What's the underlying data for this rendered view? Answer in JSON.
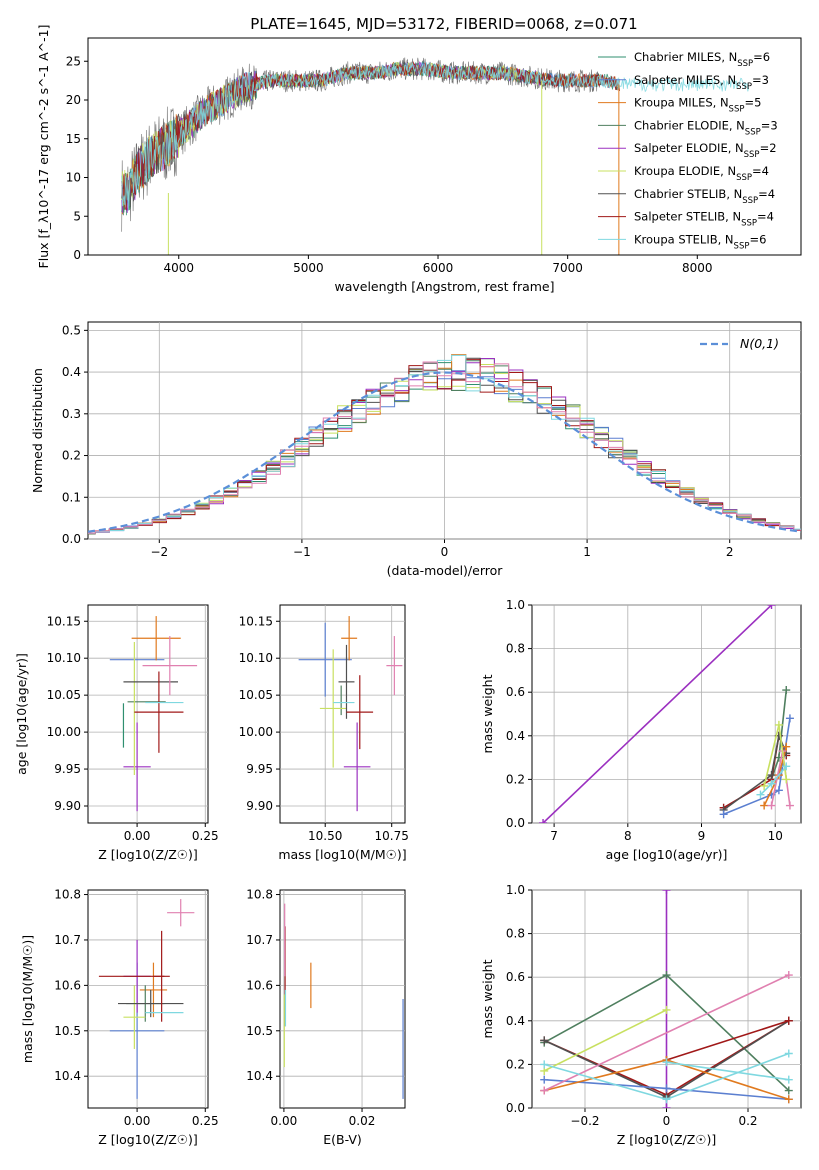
{
  "figure_title": "PLATE=1645, MJD=53172, FIBERID=0068, z=0.071",
  "colors": {
    "chabrier_miles": "#2f8f6f",
    "salpeter_miles": "#5b7fd0",
    "kroupa_miles": "#e07a1f",
    "chabrier_elodie": "#4f7f5f",
    "salpeter_elodie": "#9b30c0",
    "kroupa_elodie": "#c8e060",
    "chabrier_stelib": "#505050",
    "salpeter_stelib": "#a01818",
    "kroupa_stelib": "#7fd8e0",
    "pink": "#e080b0",
    "gaussian": "#5b8fd8",
    "grid": "#b0b0b0"
  },
  "chart_data": [
    {
      "id": "spectrum",
      "type": "line",
      "xlabel": "wavelength [Angstrom, rest frame]",
      "ylabel": "Flux [f_λ10^-17 erg cm^-2 s^-1 A^-1]",
      "xlim": [
        3300,
        8800
      ],
      "ylim": [
        0,
        28
      ],
      "xticks": [
        4000,
        5000,
        6000,
        7000,
        8000
      ],
      "yticks": [
        0,
        5,
        10,
        15,
        20,
        25
      ],
      "grid": false,
      "legend_position": "upper right",
      "spectrum_model": {
        "x": [
          3600,
          3700,
          3800,
          3900,
          4000,
          4100,
          4200,
          4300,
          4400,
          4500,
          4700,
          4900,
          5100,
          5300,
          5500,
          5700,
          5900,
          6100,
          6300,
          6500,
          6700,
          6900,
          7100,
          7300,
          7400
        ],
        "y": [
          8,
          11,
          13,
          14,
          15.5,
          17,
          18.5,
          19.5,
          20.5,
          21.5,
          22.5,
          22.5,
          22.5,
          23.5,
          23.5,
          24,
          24,
          23.5,
          23.5,
          23.5,
          23,
          22.5,
          22.5,
          22.5,
          22
        ]
      },
      "series": [
        {
          "name": "Chabrier MILES, N_SSP=6",
          "color_key": "chabrier_miles",
          "end": 7400
        },
        {
          "name": "Salpeter MILES, N_SSP=3",
          "color_key": "salpeter_miles",
          "end": 7400
        },
        {
          "name": "Kroupa MILES, N_SSP=5",
          "color_key": "kroupa_miles",
          "end": 7400
        },
        {
          "name": "Chabrier ELODIE, N_SSP=3",
          "color_key": "chabrier_elodie",
          "end": 6800
        },
        {
          "name": "Salpeter ELODIE, N_SSP=2",
          "color_key": "salpeter_elodie",
          "end": 6800
        },
        {
          "name": "Kroupa ELODIE, N_SSP=4",
          "color_key": "kroupa_elodie",
          "end": 6800
        },
        {
          "name": "Chabrier STELIB, N_SSP=4",
          "color_key": "chabrier_stelib",
          "end": 7400
        },
        {
          "name": "Salpeter STELIB, N_SSP=4",
          "color_key": "salpeter_stelib",
          "end": 7400
        },
        {
          "name": "Kroupa STELIB, N_SSP=6",
          "color_key": "kroupa_stelib",
          "end": 8400
        }
      ],
      "data_series": {
        "name": "data",
        "color": "#707070",
        "x_range": [
          3560,
          7250
        ]
      }
    },
    {
      "id": "residuals",
      "type": "line",
      "xlabel": "(data-model)/error",
      "ylabel": "Normed distribution",
      "xlim": [
        -2.5,
        2.5
      ],
      "ylim": [
        0,
        0.52
      ],
      "xticks": [
        -2,
        -1,
        0,
        1,
        2
      ],
      "yticks": [
        0.0,
        0.1,
        0.2,
        0.3,
        0.4,
        0.5
      ],
      "grid": true,
      "legend_position": "upper right",
      "gaussian": {
        "label": "N(0,1)",
        "mean": 0,
        "sigma": 1
      },
      "hist_bin_width": 0.1,
      "hist_colors": [
        "chabrier_miles",
        "salpeter_miles",
        "kroupa_miles",
        "chabrier_elodie",
        "salpeter_elodie",
        "kroupa_elodie",
        "chabrier_stelib",
        "salpeter_stelib",
        "kroupa_stelib",
        "pink"
      ]
    },
    {
      "id": "age_vs_Z",
      "type": "scatter",
      "xlabel": "Z [log10(Z/Z☉)]",
      "ylabel": "age [log10(age/yr)]",
      "xlim": [
        -0.18,
        0.26
      ],
      "ylim": [
        9.877,
        10.172
      ],
      "xticks": [
        0.0,
        0.25
      ],
      "yticks": [
        9.9,
        9.95,
        10.0,
        10.05,
        10.1,
        10.15
      ],
      "tick_labels_x": [
        "0.00",
        "0.25"
      ],
      "tick_labels_y": [
        "9.90",
        "9.95",
        "10.00",
        "10.05, ",
        "10.10",
        "10.15"
      ],
      "grid": true,
      "points": [
        {
          "x": 0.0,
          "y": 10.098,
          "xerr": 0.1,
          "yerr": 0.0,
          "color_key": "salpeter_miles"
        },
        {
          "x": 0.07,
          "y": 10.127,
          "xerr": 0.09,
          "yerr": 0.03,
          "color_key": "kroupa_miles"
        },
        {
          "x": 0.035,
          "y": 10.041,
          "xerr": 0.07,
          "yerr": 0.0,
          "color_key": "chabrier_elodie"
        },
        {
          "x": 0.0,
          "y": 9.953,
          "xerr": 0.05,
          "yerr": 0.06,
          "color_key": "salpeter_elodie"
        },
        {
          "x": -0.01,
          "y": 10.032,
          "xerr": 0.0,
          "yerr": 0.09,
          "color_key": "kroupa_elodie"
        },
        {
          "x": 0.05,
          "y": 10.068,
          "xerr": 0.1,
          "yerr": 0.0,
          "color_key": "chabrier_stelib"
        },
        {
          "x": 0.08,
          "y": 10.027,
          "xerr": 0.09,
          "yerr": 0.055,
          "color_key": "salpeter_stelib"
        },
        {
          "x": 0.1,
          "y": 10.04,
          "xerr": 0.07,
          "yerr": 0.0,
          "color_key": "kroupa_stelib"
        },
        {
          "x": 0.12,
          "y": 10.09,
          "xerr": 0.1,
          "yerr": 0.04,
          "color_key": "pink"
        },
        {
          "x": -0.05,
          "y": 10.009,
          "xerr": 0.0,
          "yerr": 0.03,
          "color_key": "chabrier_miles"
        }
      ]
    },
    {
      "id": "age_vs_mass",
      "type": "scatter",
      "xlabel": "mass [log10(M/M☉)]",
      "ylabel": "",
      "xlim": [
        10.33,
        10.8
      ],
      "ylim": [
        9.877,
        10.172
      ],
      "xticks": [
        10.5,
        10.75
      ],
      "yticks": [
        9.9,
        9.95,
        10.0,
        10.05,
        10.1,
        10.15
      ],
      "tick_labels_x": [
        "10.50",
        "10.75"
      ],
      "tick_labels_y": [
        "9.90",
        "9.95",
        "10.00",
        "10.05",
        "10.10",
        "10.15"
      ],
      "grid": true,
      "points": [
        {
          "x": 10.5,
          "y": 10.098,
          "xerr": 0.1,
          "yerr": 0.05,
          "color_key": "salpeter_miles"
        },
        {
          "x": 10.59,
          "y": 10.127,
          "xerr": 0.03,
          "yerr": 0.03,
          "color_key": "kroupa_miles"
        },
        {
          "x": 10.56,
          "y": 10.043,
          "xerr": 0.0,
          "yerr": 0.02,
          "color_key": "chabrier_elodie"
        },
        {
          "x": 10.62,
          "y": 9.953,
          "xerr": 0.05,
          "yerr": 0.06,
          "color_key": "salpeter_elodie"
        },
        {
          "x": 10.53,
          "y": 10.032,
          "xerr": 0.05,
          "yerr": 0.08,
          "color_key": "kroupa_elodie"
        },
        {
          "x": 10.58,
          "y": 10.068,
          "xerr": 0.03,
          "yerr": 0.05,
          "color_key": "chabrier_stelib"
        },
        {
          "x": 10.63,
          "y": 10.027,
          "xerr": 0.05,
          "yerr": 0.05,
          "color_key": "salpeter_stelib"
        },
        {
          "x": 10.57,
          "y": 10.04,
          "xerr": 0.04,
          "yerr": 0.0,
          "color_key": "kroupa_stelib"
        },
        {
          "x": 10.76,
          "y": 10.09,
          "xerr": 0.03,
          "yerr": 0.04,
          "color_key": "pink"
        }
      ]
    },
    {
      "id": "mass_weight_vs_age",
      "type": "line",
      "xlabel": "age [log10(age/yr)]",
      "ylabel": "mass weight",
      "xlim": [
        6.7,
        10.35
      ],
      "ylim": [
        0,
        1.0
      ],
      "xticks": [
        7,
        8,
        9,
        10
      ],
      "yticks": [
        0.0,
        0.2,
        0.4,
        0.6,
        0.8,
        1.0
      ],
      "grid": true,
      "series": [
        {
          "color_key": "salpeter_elodie",
          "x": [
            6.85,
            9.95
          ],
          "y": [
            0.0,
            1.0
          ]
        },
        {
          "color_key": "chabrier_elodie",
          "x": [
            9.95,
            10.05,
            10.15
          ],
          "y": [
            0.2,
            0.3,
            0.61
          ]
        },
        {
          "color_key": "salpeter_stelib",
          "x": [
            9.3,
            9.95,
            10.05,
            10.15
          ],
          "y": [
            0.07,
            0.2,
            0.4,
            0.31
          ]
        },
        {
          "color_key": "chabrier_stelib",
          "x": [
            9.3,
            9.95,
            10.05,
            10.15
          ],
          "y": [
            0.06,
            0.22,
            0.4,
            0.32
          ]
        },
        {
          "color_key": "salpeter_miles",
          "x": [
            9.3,
            9.95,
            10.05,
            10.2
          ],
          "y": [
            0.04,
            0.13,
            0.15,
            0.48
          ]
        },
        {
          "color_key": "kroupa_miles",
          "x": [
            9.85,
            10.05,
            10.15
          ],
          "y": [
            0.08,
            0.22,
            0.35
          ]
        },
        {
          "color_key": "pink",
          "x": [
            9.95,
            10.1,
            10.2
          ],
          "y": [
            0.08,
            0.33,
            0.08
          ]
        },
        {
          "color_key": "kroupa_elodie",
          "x": [
            9.85,
            10.05,
            10.15
          ],
          "y": [
            0.17,
            0.45,
            0.2
          ]
        },
        {
          "color_key": "kroupa_stelib",
          "x": [
            9.8,
            9.95,
            10.15
          ],
          "y": [
            0.13,
            0.18,
            0.26
          ]
        }
      ]
    },
    {
      "id": "mass_vs_Z",
      "type": "scatter",
      "xlabel": "Z [log10(Z/Z☉)]",
      "ylabel": "mass [log10(M/M☉)]",
      "xlim": [
        -0.18,
        0.26
      ],
      "ylim": [
        10.33,
        10.81
      ],
      "xticks": [
        0.0,
        0.25
      ],
      "yticks": [
        10.4,
        10.5,
        10.6,
        10.7,
        10.8
      ],
      "tick_labels_x": [
        "0.00",
        "0.25"
      ],
      "tick_labels_y": [
        "10.4",
        "10.5",
        "10.6",
        "10.7",
        "10.8"
      ],
      "grid": true,
      "points": [
        {
          "x": 0.0,
          "y": 10.5,
          "xerr": 0.1,
          "yerr": 0.15,
          "color_key": "salpeter_miles"
        },
        {
          "x": 0.06,
          "y": 10.59,
          "xerr": 0.05,
          "yerr": 0.06,
          "color_key": "kroupa_miles"
        },
        {
          "x": 0.03,
          "y": 10.56,
          "xerr": 0.07,
          "yerr": 0.04,
          "color_key": "chabrier_elodie"
        },
        {
          "x": 0.0,
          "y": 10.62,
          "xerr": 0.05,
          "yerr": 0.08,
          "color_key": "salpeter_elodie"
        },
        {
          "x": -0.01,
          "y": 10.53,
          "xerr": 0.04,
          "yerr": 0.07,
          "color_key": "kroupa_elodie"
        },
        {
          "x": 0.05,
          "y": 10.56,
          "xerr": 0.12,
          "yerr": 0.03,
          "color_key": "chabrier_stelib"
        },
        {
          "x": -0.02,
          "y": 10.62,
          "xerr": 0.12,
          "yerr": 0.0,
          "color_key": "salpeter_stelib"
        },
        {
          "x": 0.09,
          "y": 10.62,
          "xerr": 0.03,
          "yerr": 0.1,
          "color_key": "salpeter_stelib"
        },
        {
          "x": 0.1,
          "y": 10.54,
          "xerr": 0.07,
          "yerr": 0.0,
          "color_key": "kroupa_stelib"
        },
        {
          "x": 0.16,
          "y": 10.76,
          "xerr": 0.05,
          "yerr": 0.03,
          "color_key": "pink"
        }
      ]
    },
    {
      "id": "mass_vs_ebv",
      "type": "scatter",
      "xlabel": "E(B-V)",
      "ylabel": "",
      "xlim": [
        -0.001,
        0.031
      ],
      "ylim": [
        10.33,
        10.81
      ],
      "xticks": [
        0.0,
        0.02
      ],
      "yticks": [
        10.4,
        10.5,
        10.6,
        10.7,
        10.8
      ],
      "tick_labels_x": [
        "0.00",
        "0.02"
      ],
      "tick_labels_y": [
        "10.4",
        "10.5",
        "10.6",
        "10.7",
        "10.8"
      ],
      "grid": true,
      "points": [
        {
          "x": 0.0003,
          "y": 10.62,
          "xerr": 0,
          "yerr": 0.11,
          "color_key": "salpeter_stelib"
        },
        {
          "x": 0.0002,
          "y": 10.7,
          "xerr": 0,
          "yerr": 0.08,
          "color_key": "pink"
        },
        {
          "x": 0.0001,
          "y": 10.5,
          "xerr": 0,
          "yerr": 0.08,
          "color_key": "kroupa_elodie"
        },
        {
          "x": 0.0004,
          "y": 10.55,
          "xerr": 0,
          "yerr": 0.04,
          "color_key": "kroupa_stelib"
        },
        {
          "x": 0.0069,
          "y": 10.6,
          "xerr": 0,
          "yerr": 0.05,
          "color_key": "kroupa_miles"
        },
        {
          "x": 0.0305,
          "y": 10.46,
          "xerr": 0,
          "yerr": 0.11,
          "color_key": "salpeter_miles"
        }
      ]
    },
    {
      "id": "mass_weight_vs_Z",
      "type": "line",
      "xlabel": "Z [log10(Z/Z☉)]",
      "ylabel": "mass weight",
      "xlim": [
        -0.33,
        0.33
      ],
      "ylim": [
        0,
        1.0
      ],
      "xticks": [
        -0.2,
        0.0,
        0.2
      ],
      "yticks": [
        0.0,
        0.2,
        0.4,
        0.6,
        0.8,
        1.0
      ],
      "grid": true,
      "series": [
        {
          "color_key": "salpeter_elodie",
          "x": [
            0.0,
            0.0
          ],
          "y": [
            0.0,
            1.0
          ]
        },
        {
          "color_key": "chabrier_elodie",
          "x": [
            -0.3,
            0.0,
            0.3
          ],
          "y": [
            0.3,
            0.61,
            0.08
          ]
        },
        {
          "color_key": "salpeter_stelib",
          "x": [
            -0.3,
            0.0,
            0.3
          ],
          "y": [
            0.31,
            0.06,
            0.4
          ]
        },
        {
          "color_key": "chabrier_stelib",
          "x": [
            -0.3,
            0.0,
            0.3
          ],
          "y": [
            0.31,
            0.05,
            0.4
          ]
        },
        {
          "color_key": "salpeter_stelib",
          "x": [
            0.0,
            0.3
          ],
          "y": [
            0.22,
            0.4
          ]
        },
        {
          "color_key": "salpeter_miles",
          "x": [
            -0.3,
            0.0,
            0.3
          ],
          "y": [
            0.13,
            0.09,
            0.04
          ]
        },
        {
          "color_key": "kroupa_miles",
          "x": [
            -0.3,
            0.0,
            0.3
          ],
          "y": [
            0.08,
            0.22,
            0.04
          ]
        },
        {
          "color_key": "pink",
          "x": [
            -0.3,
            0.3
          ],
          "y": [
            0.08,
            0.61
          ]
        },
        {
          "color_key": "kroupa_elodie",
          "x": [
            -0.3,
            0.0
          ],
          "y": [
            0.17,
            0.45
          ]
        },
        {
          "color_key": "kroupa_stelib",
          "x": [
            -0.3,
            0.0,
            0.3
          ],
          "y": [
            0.2,
            0.04,
            0.25
          ]
        },
        {
          "color_key": "kroupa_stelib",
          "x": [
            0.0,
            0.3
          ],
          "y": [
            0.21,
            0.13
          ]
        }
      ]
    }
  ]
}
